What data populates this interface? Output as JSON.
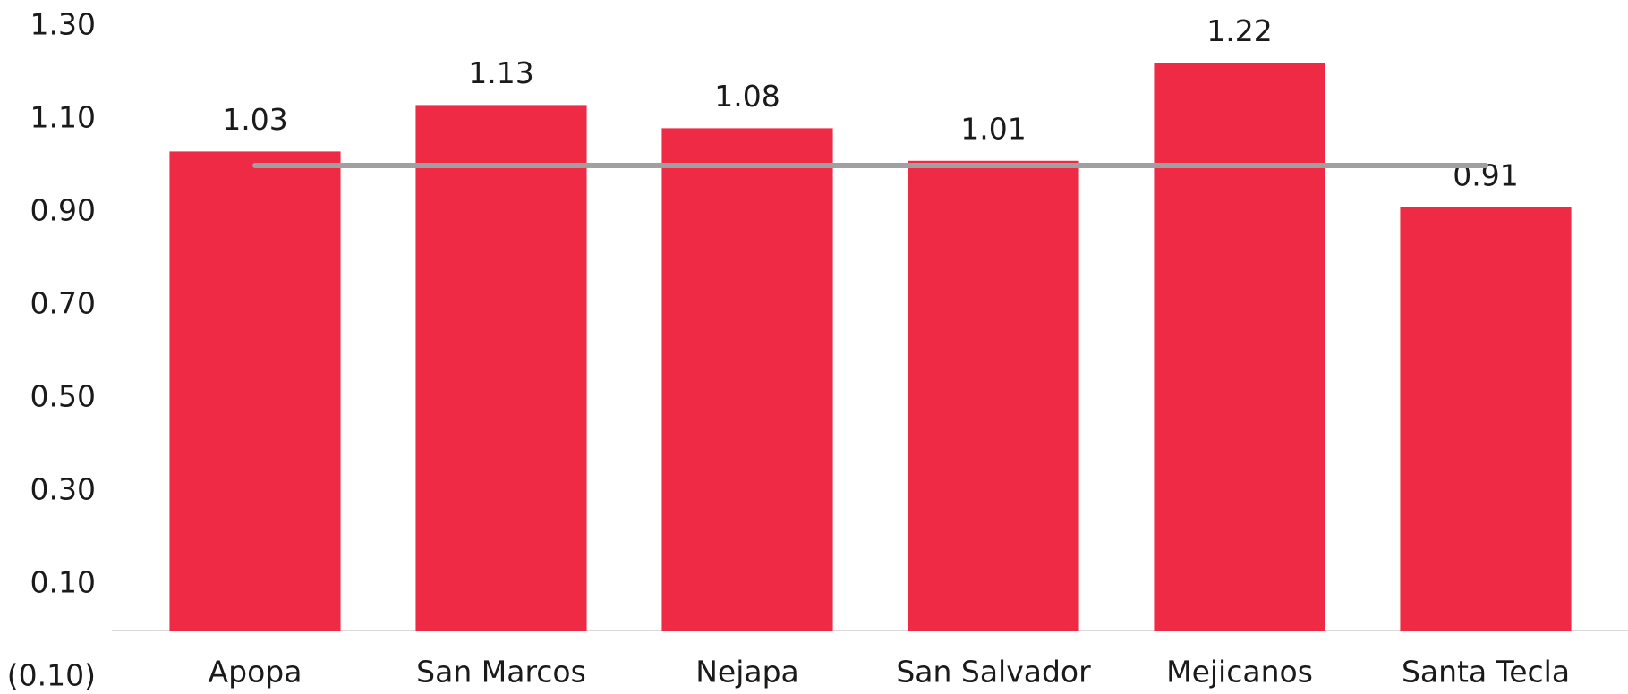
{
  "chart_data": {
    "type": "bar",
    "categories": [
      "Apopa",
      "San Marcos",
      "Nejapa",
      "San Salvador",
      "Mejicanos",
      "Santa Tecla"
    ],
    "series": [
      {
        "type": "bar",
        "color": "#ee2a45",
        "values": [
          1.03,
          1.13,
          1.08,
          1.01,
          1.22,
          0.91
        ]
      },
      {
        "type": "line",
        "color": "#a0a0a0",
        "values": [
          1,
          1,
          1,
          1,
          1,
          1
        ]
      }
    ],
    "ylim": [
      -0.1,
      1.3
    ],
    "yticks": [
      {
        "value": -0.1,
        "label": "(0.10)"
      },
      {
        "value": 0.1,
        "label": "0.10"
      },
      {
        "value": 0.3,
        "label": "0.30"
      },
      {
        "value": 0.5,
        "label": "0.50"
      },
      {
        "value": 0.7,
        "label": "0.70"
      },
      {
        "value": 0.9,
        "label": "0.90"
      },
      {
        "value": 1.1,
        "label": "1.10"
      },
      {
        "value": 1.3,
        "label": "1.30"
      }
    ],
    "grid": false
  }
}
